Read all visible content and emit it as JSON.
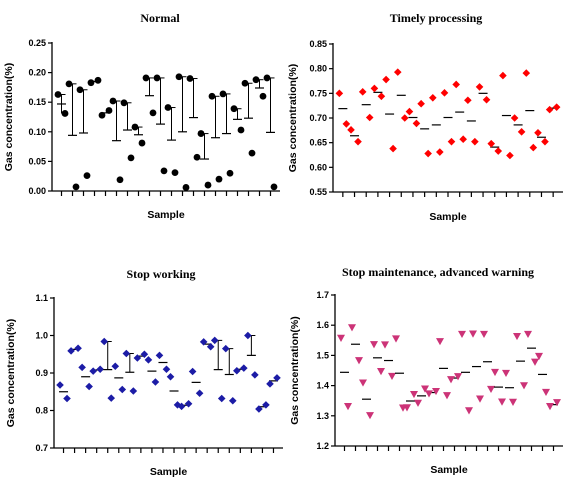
{
  "chart_data": [
    {
      "type": "scatter",
      "title": "Normal",
      "xlabel": "Sample",
      "ylabel": "Gas concentration(%)",
      "ylim": [
        0,
        0.25
      ],
      "yticks": [
        "0.00",
        "0.05",
        "0.10",
        "0.15",
        "0.20",
        "0.25"
      ],
      "marker": "circle",
      "color": "#000000",
      "groups": [
        {
          "points": [
            0.163,
            0.131
          ],
          "mean": 0.147,
          "error": [
            0.131,
            0.163
          ]
        },
        {
          "points": [
            0.181,
            0.007
          ],
          "mean": 0.094,
          "error": [
            0.094,
            0.181
          ]
        },
        {
          "points": [
            0.171,
            0.026
          ],
          "mean": 0.098,
          "error": [
            0.098,
            0.171
          ]
        },
        {
          "points": [
            0.183,
            0.187
          ],
          "mean": 0.185
        },
        {
          "points": [
            0.128,
            0.136
          ],
          "mean": 0.132
        },
        {
          "points": [
            0.152,
            0.019
          ],
          "mean": 0.085,
          "error": [
            0.085,
            0.152
          ]
        },
        {
          "points": [
            0.149,
            0.056
          ],
          "mean": 0.103,
          "error": [
            0.103,
            0.149
          ]
        },
        {
          "points": [
            0.108,
            0.081
          ],
          "mean": 0.095,
          "error": [
            0.095,
            0.108
          ]
        },
        {
          "points": [
            0.191,
            0.132
          ],
          "mean": 0.161,
          "error": [
            0.161,
            0.191
          ]
        },
        {
          "points": [
            0.191,
            0.034
          ],
          "mean": 0.113,
          "error": [
            0.113,
            0.191
          ]
        },
        {
          "points": [
            0.141,
            0.031
          ],
          "mean": 0.086,
          "error": [
            0.086,
            0.141
          ]
        },
        {
          "points": [
            0.193,
            0.006
          ],
          "mean": 0.1,
          "error": [
            0.1,
            0.193
          ]
        },
        {
          "points": [
            0.19,
            0.057
          ],
          "mean": 0.124,
          "error": [
            0.124,
            0.19
          ]
        },
        {
          "points": [
            0.097,
            0.01
          ],
          "mean": 0.054,
          "error": [
            0.054,
            0.097
          ]
        },
        {
          "points": [
            0.16,
            0.02
          ],
          "mean": 0.09,
          "error": [
            0.09,
            0.16
          ]
        },
        {
          "points": [
            0.164,
            0.03
          ],
          "mean": 0.097,
          "error": [
            0.097,
            0.164
          ]
        },
        {
          "points": [
            0.139,
            0.103
          ],
          "mean": 0.121,
          "error": [
            0.121,
            0.139
          ]
        },
        {
          "points": [
            0.182,
            0.064
          ],
          "mean": 0.123,
          "error": [
            0.123,
            0.182
          ]
        },
        {
          "points": [
            0.188,
            0.16
          ],
          "mean": 0.174,
          "error": [
            0.174,
            0.188
          ]
        },
        {
          "points": [
            0.191,
            0.007
          ],
          "mean": 0.099,
          "error": [
            0.099,
            0.191
          ]
        }
      ]
    },
    {
      "type": "scatter",
      "title": "Timely processing",
      "xlabel": "Sample",
      "ylabel": "Gas concentration(%)",
      "ylim": [
        0.55,
        0.85
      ],
      "yticks": [
        "0.55",
        "0.60",
        "0.65",
        "0.70",
        "0.75",
        "0.80",
        "0.85"
      ],
      "marker": "diamond",
      "color": "#ff0000",
      "groups": [
        {
          "points": [
            0.75,
            0.688
          ],
          "mean": 0.719
        },
        {
          "points": [
            0.676,
            0.652
          ],
          "mean": 0.664
        },
        {
          "points": [
            0.753,
            0.701
          ],
          "mean": 0.727
        },
        {
          "points": [
            0.76,
            0.744
          ],
          "mean": 0.752
        },
        {
          "points": [
            0.778,
            0.638
          ],
          "mean": 0.708
        },
        {
          "points": [
            0.793,
            0.7
          ],
          "mean": 0.746
        },
        {
          "points": [
            0.713,
            0.689
          ],
          "mean": 0.701
        },
        {
          "points": [
            0.729,
            0.628
          ],
          "mean": 0.678
        },
        {
          "points": [
            0.741,
            0.631
          ],
          "mean": 0.686
        },
        {
          "points": [
            0.751,
            0.652
          ],
          "mean": 0.701
        },
        {
          "points": [
            0.768,
            0.657
          ],
          "mean": 0.712
        },
        {
          "points": [
            0.736,
            0.652
          ],
          "mean": 0.694
        },
        {
          "points": [
            0.763,
            0.737
          ],
          "mean": 0.75
        },
        {
          "points": [
            0.648,
            0.633
          ],
          "mean": 0.641
        },
        {
          "points": [
            0.786,
            0.624
          ],
          "mean": 0.705
        },
        {
          "points": [
            0.7,
            0.672
          ],
          "mean": 0.686
        },
        {
          "points": [
            0.791,
            0.64
          ],
          "mean": 0.715
        },
        {
          "points": [
            0.67,
            0.652
          ],
          "mean": 0.661
        },
        {
          "points": [
            0.717,
            0.722
          ],
          "mean": 0.72
        }
      ]
    },
    {
      "type": "scatter",
      "title": "Stop working",
      "xlabel": "Sample",
      "ylabel": "Gas concentration(%)",
      "ylim": [
        0.7,
        1.1
      ],
      "yticks": [
        "0.7",
        "0.8",
        "0.9",
        "1.0",
        "1.1"
      ],
      "marker": "diamond",
      "color": "#1c1ca6",
      "groups": [
        {
          "points": [
            0.868,
            0.832
          ],
          "mean": 0.85
        },
        {
          "points": [
            0.959,
            0.966
          ],
          "mean": 0.963
        },
        {
          "points": [
            0.915,
            0.864
          ],
          "mean": 0.89
        },
        {
          "points": [
            0.905,
            0.91
          ],
          "mean": 0.908
        },
        {
          "points": [
            0.984,
            0.833
          ],
          "mean": 0.909,
          "error": [
            0.909,
            0.984
          ]
        },
        {
          "points": [
            0.918,
            0.856
          ],
          "mean": 0.887
        },
        {
          "points": [
            0.952,
            0.852
          ],
          "mean": 0.902,
          "error": [
            0.902,
            0.952
          ]
        },
        {
          "points": [
            0.94,
            0.95
          ],
          "mean": 0.945
        },
        {
          "points": [
            0.935,
            0.876
          ],
          "mean": 0.905
        },
        {
          "points": [
            0.947,
            0.91
          ],
          "mean": 0.928
        },
        {
          "points": [
            0.89,
            0.815
          ],
          "mean": 0.852
        },
        {
          "points": [
            0.811,
            0.818
          ],
          "mean": 0.814
        },
        {
          "points": [
            0.904,
            0.846
          ],
          "mean": 0.875
        },
        {
          "points": [
            0.983,
            0.97
          ],
          "mean": 0.977
        },
        {
          "points": [
            0.987,
            0.832
          ],
          "mean": 0.909,
          "error": [
            0.909,
            0.987
          ]
        },
        {
          "points": [
            0.965,
            0.826
          ],
          "mean": 0.896,
          "error": [
            0.896,
            0.965
          ]
        },
        {
          "points": [
            0.906,
            0.913
          ],
          "mean": 0.91
        },
        {
          "points": [
            1.0,
            0.895
          ],
          "mean": 0.947,
          "error": [
            0.947,
            1.0
          ]
        },
        {
          "points": [
            0.804,
            0.815
          ],
          "mean": 0.81
        },
        {
          "points": [
            0.871,
            0.887
          ],
          "mean": 0.879
        }
      ]
    },
    {
      "type": "scatter",
      "title": "Stop maintenance, advanced warning",
      "xlabel": "Sample",
      "ylabel": "Gas concentration(%)",
      "ylim": [
        1.2,
        1.7
      ],
      "yticks": [
        "1.2",
        "1.3",
        "1.4",
        "1.5",
        "1.6",
        "1.7"
      ],
      "marker": "triangle-down",
      "color": "#cc3377",
      "groups": [
        {
          "points": [
            1.557,
            1.331
          ],
          "mean": 1.444
        },
        {
          "points": [
            1.592,
            1.483
          ],
          "mean": 1.537
        },
        {
          "points": [
            1.409,
            1.301
          ],
          "mean": 1.355
        },
        {
          "points": [
            1.536,
            1.447
          ],
          "mean": 1.492
        },
        {
          "points": [
            1.535,
            1.431
          ],
          "mean": 1.483
        },
        {
          "points": [
            1.555,
            1.326
          ],
          "mean": 1.441
        },
        {
          "points": [
            1.327,
            1.371
          ],
          "mean": 1.349
        },
        {
          "points": [
            1.342,
            1.389
          ],
          "mean": 1.366
        },
        {
          "points": [
            1.373,
            1.381
          ],
          "mean": 1.377
        },
        {
          "points": [
            1.546,
            1.367
          ],
          "mean": 1.457
        },
        {
          "points": [
            1.42,
            1.43
          ],
          "mean": 1.425
        },
        {
          "points": [
            1.57,
            1.317
          ],
          "mean": 1.444
        },
        {
          "points": [
            1.571,
            1.356
          ],
          "mean": 1.463
        },
        {
          "points": [
            1.57,
            1.388
          ],
          "mean": 1.479
        },
        {
          "points": [
            1.444,
            1.346
          ],
          "mean": 1.395
        },
        {
          "points": [
            1.441,
            1.345
          ],
          "mean": 1.393
        },
        {
          "points": [
            1.563,
            1.4
          ],
          "mean": 1.481
        },
        {
          "points": [
            1.57,
            1.478
          ],
          "mean": 1.524
        },
        {
          "points": [
            1.497,
            1.378
          ],
          "mean": 1.437
        },
        {
          "points": [
            1.331,
            1.344
          ],
          "mean": 1.337
        }
      ]
    }
  ]
}
